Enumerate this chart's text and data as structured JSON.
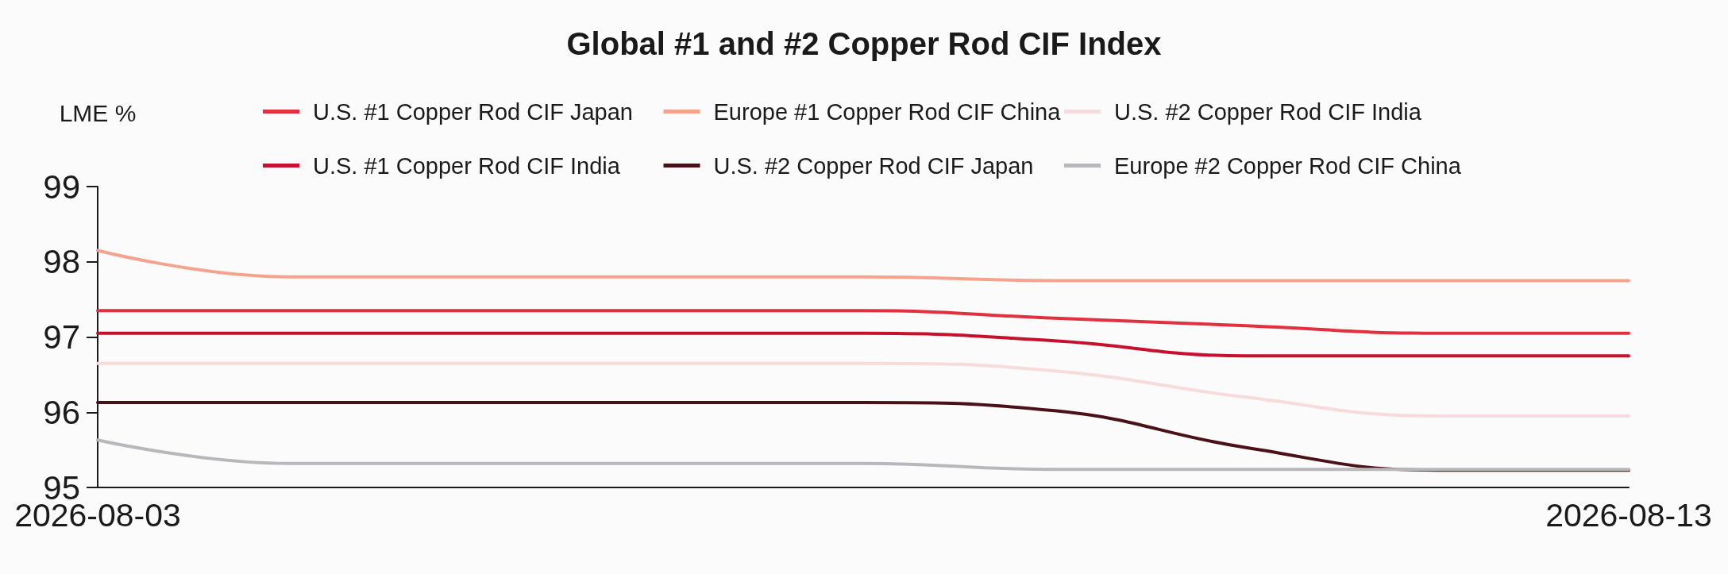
{
  "chart_data": {
    "type": "line",
    "title": "Global #1 and #2 Copper Rod CIF Index",
    "ylabel": "LME %",
    "categories": [
      "2026-08-03",
      null,
      null,
      null,
      null,
      null,
      null,
      null,
      "2026-08-13"
    ],
    "series": [
      {
        "name": "U.S. #1 Copper Rod CIF Japan",
        "color": "#e2303f",
        "values": [
          97.35,
          97.35,
          97.35,
          97.35,
          97.35,
          97.25,
          97.15,
          97.05,
          97.05
        ]
      },
      {
        "name": "Europe #1 Copper Rod CIF China",
        "color": "#f5a38d",
        "values": [
          98.15,
          97.8,
          97.8,
          97.8,
          97.8,
          97.75,
          97.75,
          97.75,
          97.75
        ]
      },
      {
        "name": "U.S. #2 Copper Rod CIF India",
        "color": "#f8dcdc",
        "values": [
          96.65,
          96.65,
          96.65,
          96.65,
          96.65,
          96.55,
          96.2,
          95.95,
          95.95
        ]
      },
      {
        "name": "U.S. #1 Copper Rod CIF India",
        "color": "#c8102e",
        "values": [
          97.05,
          97.05,
          97.05,
          97.05,
          97.05,
          96.95,
          96.75,
          96.75,
          96.75
        ]
      },
      {
        "name": "U.S. #2 Copper Rod CIF Japan",
        "color": "#4a1218",
        "values": [
          96.13,
          96.13,
          96.13,
          96.13,
          96.13,
          96.02,
          95.53,
          95.23,
          95.23
        ]
      },
      {
        "name": "Europe #2 Copper Rod CIF China",
        "color": "#b8b8bc",
        "values": [
          95.63,
          95.32,
          95.32,
          95.32,
          95.32,
          95.24,
          95.24,
          95.24,
          95.24
        ]
      }
    ],
    "ylim": [
      95,
      99
    ],
    "yticks": [
      95,
      96,
      97,
      98,
      99
    ],
    "legend": "top",
    "marker": "none"
  }
}
